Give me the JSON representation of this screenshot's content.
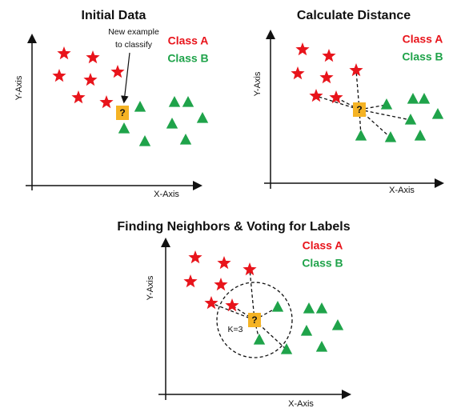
{
  "panels": [
    {
      "title": "Initial Data",
      "x_axis": "X-Axis",
      "y_axis": "Y-Axis",
      "legend": [
        "Class A",
        "Class B"
      ],
      "annotation": [
        "New example",
        "to classify"
      ],
      "query_label": "?"
    },
    {
      "title": "Calculate Distance",
      "x_axis": "X-Axis",
      "y_axis": "Y-Axis",
      "legend": [
        "Class A",
        "Class B"
      ],
      "query_label": "?"
    },
    {
      "title": "Finding Neighbors & Voting for Labels",
      "x_axis": "X-Axis",
      "y_axis": "Y-Axis",
      "legend": [
        "Class A",
        "Class B"
      ],
      "query_label": "?",
      "k_label": "K=3"
    }
  ]
}
